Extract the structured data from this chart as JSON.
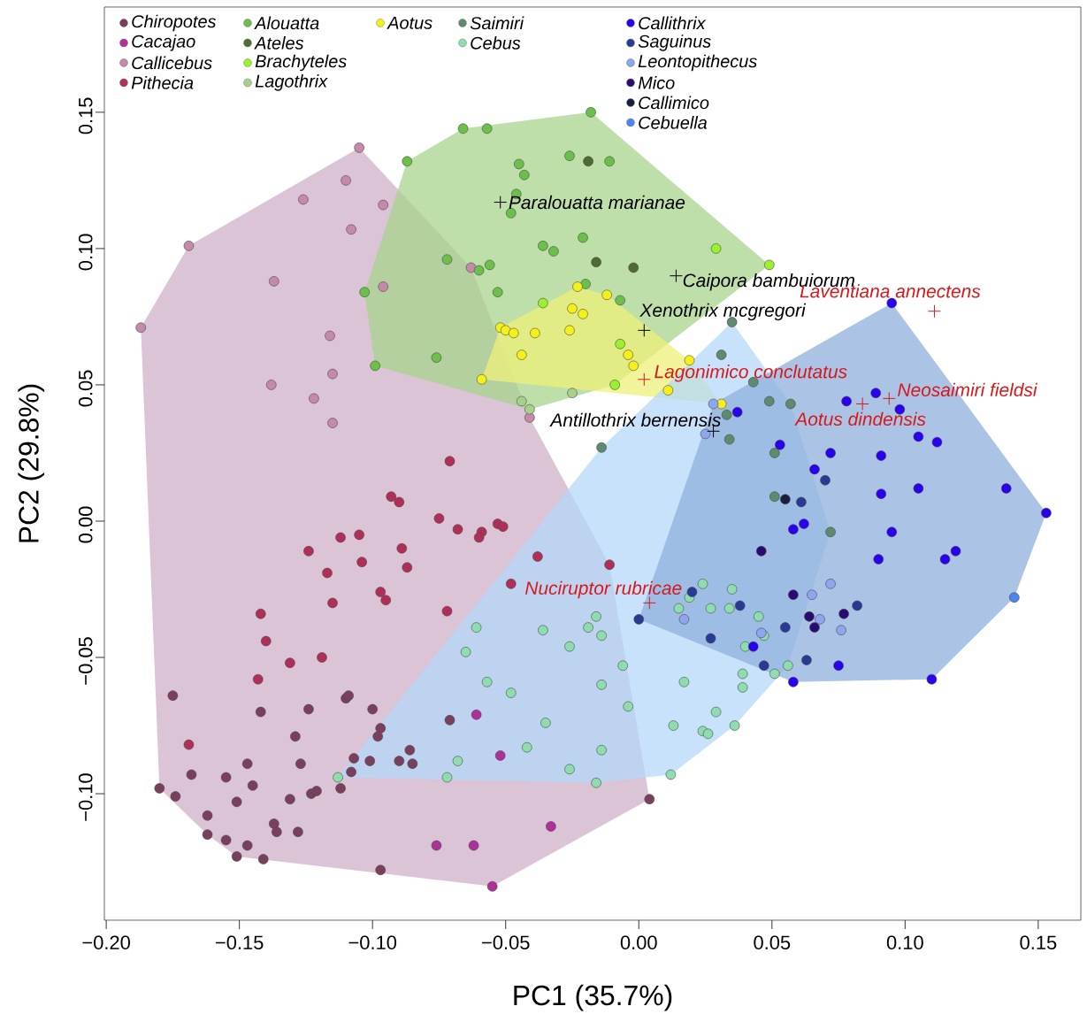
{
  "chart_data": {
    "type": "scatter",
    "xlabel": "PC1 (35.7%)",
    "ylabel": "PC2 (29.8%)",
    "xlim": [
      -0.2007,
      0.166
    ],
    "ylim": [
      -0.1464,
      0.1886
    ],
    "xticks": [
      {
        "value": -0.2,
        "label": "−0.20"
      },
      {
        "value": -0.15,
        "label": "−0.15"
      },
      {
        "value": -0.1,
        "label": "−0.10"
      },
      {
        "value": -0.05,
        "label": "−0.05"
      },
      {
        "value": 0,
        "label": "0.00"
      },
      {
        "value": 0.05,
        "label": "0.05"
      },
      {
        "value": 0.1,
        "label": "0.10"
      },
      {
        "value": 0.15,
        "label": "0.15"
      }
    ],
    "yticks": [
      {
        "value": -0.1,
        "label": "−0.10"
      },
      {
        "value": -0.05,
        "label": "−0.05"
      },
      {
        "value": 0,
        "label": "0.00"
      },
      {
        "value": 0.05,
        "label": "0.05"
      },
      {
        "value": 0.1,
        "label": "0.10"
      },
      {
        "value": 0.15,
        "label": "0.15"
      }
    ],
    "marker": "circle",
    "legend": "top left",
    "series": [
      {
        "type": "area",
        "marker": "none",
        "color": "#cfb0c8",
        "x": [
          -0.105,
          -0.063,
          -0.041,
          -0.011,
          0.004,
          -0.055,
          -0.151,
          -0.162,
          -0.18,
          -0.187,
          -0.169
        ],
        "values": [
          0.137,
          0.093,
          0.038,
          -0.016,
          -0.102,
          -0.134,
          -0.123,
          -0.115,
          -0.098,
          0.071,
          0.101
        ]
      },
      {
        "type": "area",
        "marker": "none",
        "color": "#a8d48c",
        "x": [
          -0.087,
          -0.066,
          -0.018,
          0.049,
          -0.009,
          -0.041,
          -0.099,
          -0.103
        ],
        "values": [
          0.132,
          0.144,
          0.15,
          0.094,
          0.05,
          0.041,
          0.057,
          0.084
        ]
      },
      {
        "type": "area",
        "marker": "none",
        "color": "#eef07a",
        "x": [
          -0.023,
          -0.012,
          0.019,
          0.031,
          -0.059,
          -0.052
        ],
        "values": [
          0.086,
          0.083,
          0.059,
          0.043,
          0.052,
          0.071
        ]
      },
      {
        "type": "area",
        "marker": "none",
        "color": "#b4d8f8",
        "x": [
          0.035,
          0.057,
          0.072,
          0.056,
          0.036,
          0.012,
          -0.016,
          -0.113,
          -0.014
        ],
        "values": [
          0.073,
          0.043,
          -0.004,
          -0.053,
          -0.075,
          -0.093,
          -0.096,
          -0.094,
          0.027
        ]
      },
      {
        "type": "area",
        "marker": "none",
        "color": "#8fb0dc",
        "x": [
          0.095,
          0.153,
          0.141,
          0.11,
          0.058,
          0.0,
          0.028
        ],
        "values": [
          0.08,
          0.003,
          -0.028,
          -0.058,
          -0.059,
          -0.036,
          0.043
        ]
      },
      {
        "name": "*Chiropotes*",
        "color": "#7b3f5e",
        "x": [
          -0.175,
          -0.142,
          -0.124,
          -0.11,
          -0.109,
          -0.1,
          -0.097,
          -0.098,
          -0.129,
          -0.086,
          -0.107,
          -0.101,
          -0.09,
          -0.085,
          -0.108,
          -0.147,
          -0.127,
          -0.168,
          -0.155,
          -0.145,
          -0.112,
          -0.123,
          -0.121,
          -0.131,
          -0.151,
          -0.18,
          -0.174,
          -0.162,
          -0.137,
          -0.136,
          -0.128,
          -0.162,
          -0.155,
          -0.147,
          -0.151,
          -0.141,
          -0.097,
          -0.071,
          0.004
        ],
        "values": [
          -0.064,
          -0.07,
          -0.069,
          -0.065,
          -0.064,
          -0.069,
          -0.076,
          -0.079,
          -0.079,
          -0.084,
          -0.087,
          -0.088,
          -0.088,
          -0.089,
          -0.092,
          -0.089,
          -0.089,
          -0.093,
          -0.094,
          -0.097,
          -0.098,
          -0.1,
          -0.099,
          -0.102,
          -0.103,
          -0.098,
          -0.101,
          -0.108,
          -0.111,
          -0.114,
          -0.114,
          -0.115,
          -0.117,
          -0.119,
          -0.123,
          -0.124,
          -0.128,
          -0.073,
          -0.102
        ]
      },
      {
        "name": "*Cacajao*",
        "color": "#b0309a",
        "x": [
          -0.061,
          -0.052,
          -0.033,
          -0.076,
          -0.062,
          -0.055
        ],
        "values": [
          -0.071,
          -0.086,
          -0.112,
          -0.119,
          -0.119,
          -0.134
        ]
      },
      {
        "name": "*Callicebus*",
        "color": "#c58aa8",
        "x": [
          -0.105,
          -0.11,
          -0.126,
          -0.096,
          -0.108,
          -0.169,
          -0.137,
          -0.096,
          -0.187,
          -0.116,
          -0.115,
          -0.138,
          -0.122,
          -0.115,
          -0.063,
          -0.041
        ],
        "values": [
          0.137,
          0.125,
          0.118,
          0.116,
          0.107,
          0.101,
          0.088,
          0.086,
          0.071,
          0.068,
          0.054,
          0.05,
          0.045,
          0.036,
          0.093,
          0.038
        ]
      },
      {
        "name": "*Pithecia*",
        "color": "#b02e58",
        "x": [
          -0.093,
          -0.09,
          -0.075,
          -0.112,
          -0.105,
          -0.124,
          -0.089,
          -0.104,
          -0.087,
          -0.117,
          -0.097,
          -0.095,
          -0.115,
          -0.142,
          -0.14,
          -0.131,
          -0.119,
          -0.143,
          -0.169,
          -0.071,
          -0.068,
          -0.059,
          -0.06,
          -0.053,
          -0.051,
          -0.038,
          -0.011,
          -0.048,
          -0.072
        ],
        "values": [
          0.009,
          0.007,
          0.001,
          -0.006,
          -0.005,
          -0.011,
          -0.01,
          -0.015,
          -0.017,
          -0.019,
          -0.026,
          -0.029,
          -0.03,
          -0.034,
          -0.044,
          -0.052,
          -0.05,
          -0.058,
          -0.082,
          0.022,
          -0.003,
          -0.004,
          -0.006,
          -0.001,
          -0.002,
          -0.013,
          -0.016,
          -0.023,
          -0.033
        ]
      },
      {
        "name": "*Alouatta*",
        "color": "#6cc04a",
        "x": [
          -0.087,
          -0.103,
          -0.099,
          -0.076,
          -0.066,
          -0.057,
          -0.018,
          -0.026,
          -0.011,
          -0.045,
          -0.043,
          -0.046,
          -0.048,
          -0.021,
          -0.036,
          -0.032,
          -0.072,
          -0.06,
          -0.056,
          -0.02,
          -0.053,
          -0.007
        ],
        "values": [
          0.132,
          0.084,
          0.057,
          0.06,
          0.144,
          0.144,
          0.15,
          0.134,
          0.132,
          0.131,
          0.127,
          0.12,
          0.113,
          0.104,
          0.101,
          0.099,
          0.096,
          0.092,
          0.094,
          0.087,
          0.084,
          0.081
        ]
      },
      {
        "name": "*Ateles*",
        "color": "#4f6b30",
        "x": [
          -0.019,
          -0.016,
          -0.002
        ],
        "values": [
          0.132,
          0.095,
          0.093
        ]
      },
      {
        "name": "*Brachyteles*",
        "color": "#9bf030",
        "x": [
          -0.036,
          -0.007,
          -0.009,
          0.029,
          0.049
        ],
        "values": [
          0.08,
          0.065,
          0.05,
          0.1,
          0.094
        ]
      },
      {
        "name": "*Lagothrix*",
        "color": "#a8d08c",
        "x": [
          -0.025,
          -0.044,
          -0.041
        ],
        "values": [
          0.047,
          0.044,
          0.041
        ]
      },
      {
        "name": "*Aotus*",
        "color": "#f5f01a",
        "x": [
          -0.023,
          -0.012,
          -0.025,
          -0.021,
          -0.052,
          -0.05,
          -0.047,
          -0.039,
          -0.026,
          -0.044,
          -0.004,
          -0.002,
          0.019,
          -0.059,
          0.011,
          0.031
        ],
        "values": [
          0.086,
          0.083,
          0.078,
          0.076,
          0.071,
          0.07,
          0.069,
          0.069,
          0.07,
          0.061,
          0.061,
          0.057,
          0.059,
          0.052,
          0.048,
          0.043
        ]
      },
      {
        "name": "*Saimiri*",
        "color": "#5e8b6e",
        "x": [
          0.035,
          0.031,
          0.043,
          0.033,
          0.034,
          -0.014,
          0.049,
          0.057,
          0.051,
          0.051,
          0.072
        ],
        "values": [
          0.073,
          0.061,
          0.051,
          0.039,
          0.03,
          0.027,
          0.044,
          0.043,
          0.025,
          0.009,
          -0.004
        ]
      },
      {
        "name": "*Cebus*",
        "color": "#8fdcae",
        "x": [
          -0.113,
          -0.016,
          -0.019,
          -0.014,
          -0.061,
          -0.036,
          -0.065,
          -0.026,
          -0.006,
          -0.057,
          -0.048,
          -0.014,
          -0.004,
          0.017,
          -0.035,
          -0.042,
          -0.014,
          -0.068,
          -0.072,
          -0.026,
          -0.016,
          0.012,
          0.013,
          0.024,
          0.026,
          0.029,
          0.036,
          0.039,
          0.039,
          0.024,
          0.035,
          0.019,
          0.015,
          0.027,
          0.034,
          0.04,
          0.045,
          0.047,
          0.056,
          0.051
        ],
        "values": [
          -0.094,
          -0.035,
          -0.039,
          -0.042,
          -0.039,
          -0.04,
          -0.048,
          -0.046,
          -0.053,
          -0.059,
          -0.063,
          -0.06,
          -0.068,
          -0.059,
          -0.074,
          -0.083,
          -0.084,
          -0.088,
          -0.094,
          -0.091,
          -0.096,
          -0.093,
          -0.075,
          -0.077,
          -0.078,
          -0.07,
          -0.075,
          -0.056,
          -0.061,
          -0.023,
          -0.025,
          -0.028,
          -0.032,
          -0.032,
          -0.032,
          -0.046,
          -0.035,
          -0.042,
          -0.053,
          -0.056
        ]
      },
      {
        "name": "*Callithrix*",
        "color": "#2a00f0",
        "x": [
          0.037,
          0.095,
          0.078,
          0.089,
          0.098,
          0.105,
          0.112,
          0.072,
          0.091,
          0.053,
          0.066,
          0.091,
          0.105,
          0.138,
          0.153,
          0.058,
          0.062,
          0.095,
          0.09,
          0.115,
          0.119,
          0.043,
          0.075,
          0.058,
          0.11
        ],
        "values": [
          0.04,
          0.08,
          0.044,
          0.047,
          0.041,
          0.031,
          0.029,
          0.025,
          0.024,
          0.028,
          0.019,
          0.01,
          0.012,
          0.012,
          0.003,
          -0.003,
          -0.001,
          -0.004,
          -0.014,
          -0.014,
          -0.011,
          -0.046,
          -0.053,
          -0.059,
          -0.058
        ]
      },
      {
        "name": "*Saguinus*",
        "color": "#283a96",
        "x": [
          0.02,
          0.0,
          0.038,
          0.027,
          0.07,
          0.061,
          0.082,
          0.055,
          0.047,
          0.063
        ],
        "values": [
          -0.026,
          -0.036,
          -0.031,
          -0.043,
          0.015,
          0.007,
          -0.031,
          -0.039,
          -0.053,
          -0.051
        ]
      },
      {
        "name": "*Leontopithecus*",
        "color": "#8ea5f0",
        "x": [
          0.028,
          0.025,
          0.017,
          0.072,
          0.065,
          0.068,
          0.046,
          0.076
        ],
        "values": [
          0.043,
          0.032,
          -0.036,
          -0.023,
          -0.027,
          -0.036,
          -0.041,
          -0.04
        ]
      },
      {
        "name": "*Mico*",
        "color": "#2a0a72",
        "x": [
          0.046,
          0.058,
          0.064,
          0.066,
          0.077
        ],
        "values": [
          -0.011,
          -0.027,
          -0.035,
          -0.039,
          -0.034
        ]
      },
      {
        "name": "*Callimico*",
        "color": "#1a1f40",
        "x": [
          0.055
        ],
        "values": [
          0.008
        ]
      },
      {
        "name": "*Cebuella*",
        "color": "#4a86f0",
        "x": [
          0.141
        ],
        "values": [
          -0.028
        ]
      },
      {
        "marker": "cross",
        "color": "#000000",
        "x": [
          -0.052,
          0.014,
          0.002,
          0.028
        ],
        "values": [
          0.117,
          0.09,
          0.07,
          0.033
        ],
        "value_labels": [
          "*Paralouatta marianae*",
          "*Caipora bambuiorum*",
          "*Xenothrix mcgregori*",
          "*Antillothrix bernensis*"
        ]
      },
      {
        "marker": "cross",
        "color": "#d7191c",
        "x": [
          0.111,
          0.002,
          0.094,
          0.084,
          0.004
        ],
        "values": [
          0.077,
          0.052,
          0.045,
          0.043,
          -0.03
        ],
        "value_labels": [
          "*Laventiana annectens*",
          "*Lagonimico conclutatus*",
          "*Neosaimiri fieldsi*",
          "*Aotus dindensis*",
          "*Nuciruptor rubricae*"
        ]
      }
    ]
  }
}
